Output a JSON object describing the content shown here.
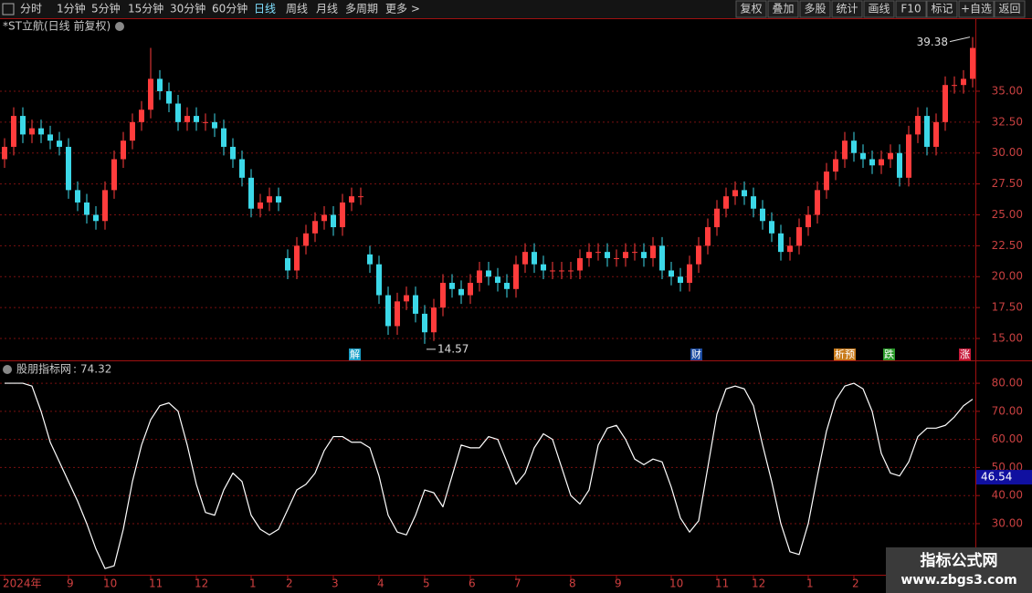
{
  "toolbar": {
    "left": [
      "分时",
      "1分钟",
      "5分钟",
      "15分钟",
      "30分钟",
      "60分钟",
      "日线",
      "周线",
      "月线",
      "多周期",
      "更多 >"
    ],
    "right": [
      "复权",
      "叠加",
      "多股",
      "统计",
      "画线",
      "F10",
      "标记",
      "+自选",
      "返回"
    ]
  },
  "watermark": {
    "title": "指标公式网",
    "url": "www.zbgs3.com"
  },
  "chart_data": [
    {
      "type": "candlestick",
      "title": "*ST立航(日线 前复权)",
      "up_color": "#ff3c3c",
      "down_color": "#3cd8e8",
      "grid": true,
      "ylim": [
        13.23,
        40.9
      ],
      "yticks": [
        {
          "value": 15,
          "label": "15.00"
        },
        {
          "value": 17.5,
          "label": "17.50"
        },
        {
          "value": 20,
          "label": "20.00"
        },
        {
          "value": 22.5,
          "label": "22.50"
        },
        {
          "value": 25,
          "label": "25.00"
        },
        {
          "value": 27.5,
          "label": "27.50"
        },
        {
          "value": 30,
          "label": "30.00"
        },
        {
          "value": 32.5,
          "label": "32.50"
        },
        {
          "value": 35,
          "label": "35.00"
        }
      ],
      "events": [
        "解",
        "财",
        "析预",
        "跌",
        "涨"
      ],
      "categories": [
        "2024年",
        null,
        null,
        null,
        null,
        null,
        null,
        "9",
        null,
        null,
        null,
        "10",
        null,
        null,
        null,
        null,
        "11",
        null,
        null,
        null,
        null,
        "12",
        null,
        null,
        null,
        null,
        null,
        "1",
        null,
        null,
        null,
        "2",
        null,
        null,
        null,
        null,
        "3",
        null,
        null,
        null,
        null,
        "4",
        null,
        null,
        null,
        null,
        "5",
        null,
        null,
        null,
        null,
        "6",
        null,
        null,
        null,
        null,
        "7",
        null,
        null,
        null,
        null,
        null,
        "8",
        null,
        null,
        null,
        null,
        "9",
        null,
        null,
        null,
        null,
        null,
        "10",
        null,
        null,
        null,
        null,
        "11",
        null,
        null,
        null,
        "12",
        null,
        null,
        null,
        null,
        null,
        "1",
        null,
        null,
        null,
        null,
        "2",
        null,
        null,
        null,
        null,
        null,
        null,
        null,
        null,
        null,
        null,
        null,
        null,
        null
      ],
      "open": [
        29.5,
        30.5,
        33,
        31.5,
        32,
        31.5,
        31,
        30.5,
        27,
        26,
        25,
        24.5,
        27,
        29.5,
        31,
        32.5,
        33.5,
        36,
        35,
        34,
        32.5,
        33,
        32.5,
        32.5,
        32,
        30.5,
        29.5,
        28,
        25.5,
        26,
        26.5,
        21.5,
        20.5,
        22.5,
        23.5,
        24.5,
        25,
        24,
        26,
        26.5,
        21.8,
        21,
        18.5,
        16,
        18,
        18.5,
        17,
        15.5,
        17.5,
        19.5,
        19,
        18.5,
        19.5,
        20.5,
        20,
        19.5,
        19,
        21,
        22,
        21,
        20.5,
        20.5,
        20.5,
        20.5,
        21.5,
        22,
        22,
        21.5,
        21.5,
        22,
        22,
        21.5,
        22.5,
        20.5,
        20,
        19.5,
        21,
        22.5,
        24,
        25.5,
        26.5,
        27,
        26.5,
        25.5,
        24.5,
        23.5,
        22,
        22.5,
        24,
        25,
        27,
        28.5,
        29.5,
        31,
        30,
        29.5,
        29,
        29.5,
        30,
        28,
        31.5,
        33,
        30.5,
        32.5,
        35.5,
        35.5,
        36
      ],
      "high": [
        31.2,
        33.7,
        33.7,
        32.7,
        32.7,
        32.2,
        31.7,
        31.2,
        27.7,
        26.7,
        25.7,
        27.7,
        30.2,
        31.7,
        33.2,
        34.2,
        38.5,
        36.7,
        35.7,
        34.7,
        33.7,
        33.7,
        33.2,
        33.2,
        32.7,
        31.2,
        30.2,
        28.7,
        26.7,
        27.2,
        27.2,
        22.2,
        23.2,
        24.2,
        25.2,
        25.7,
        25.7,
        26.7,
        27.2,
        27.2,
        22.5,
        21.7,
        19.2,
        18.7,
        19.2,
        19.2,
        17.7,
        18.2,
        20.2,
        20.2,
        19.7,
        20.2,
        21.2,
        21.2,
        20.7,
        20.2,
        21.7,
        22.7,
        22.7,
        21.7,
        21.2,
        21.2,
        21.2,
        22.2,
        22.7,
        22.7,
        22.7,
        22.2,
        22.7,
        22.7,
        22.7,
        23.2,
        23.2,
        21.2,
        20.7,
        21.7,
        23.2,
        24.7,
        26.2,
        27.2,
        27.7,
        27.7,
        27.2,
        26.2,
        25.2,
        24.2,
        23.2,
        24.7,
        25.7,
        27.7,
        29.2,
        30.2,
        31.7,
        31.7,
        30.7,
        30.2,
        30.2,
        30.7,
        30.7,
        32.2,
        33.7,
        33.7,
        33.2,
        36.2,
        36.2,
        36.7,
        39.38
      ],
      "low": [
        28.8,
        29.8,
        30.8,
        30.8,
        30.8,
        30.3,
        29.8,
        26.3,
        25.3,
        24.3,
        23.8,
        23.8,
        26.3,
        28.8,
        30.3,
        31.8,
        32.8,
        34.3,
        33.3,
        31.8,
        31.8,
        31.8,
        31.8,
        31.3,
        29.8,
        28.8,
        27.3,
        24.8,
        24.8,
        25.3,
        25.3,
        19.8,
        19.8,
        21.8,
        22.8,
        23.8,
        23.3,
        23.3,
        25.3,
        25.8,
        20.3,
        17.8,
        15.3,
        15.3,
        17.3,
        16.3,
        14.57,
        14.8,
        16.8,
        18.3,
        17.8,
        17.8,
        18.8,
        19.3,
        18.8,
        18.3,
        18.3,
        20.3,
        20.3,
        19.8,
        19.8,
        19.8,
        19.8,
        19.8,
        20.8,
        21.3,
        20.8,
        20.8,
        20.8,
        21.3,
        20.8,
        20.8,
        19.8,
        19.3,
        18.8,
        18.8,
        20.3,
        21.8,
        23.3,
        24.8,
        25.8,
        25.8,
        24.8,
        23.8,
        22.8,
        21.3,
        21.3,
        21.8,
        23.3,
        24.3,
        26.3,
        27.8,
        28.8,
        29.3,
        28.8,
        28.3,
        28.3,
        28.8,
        27.3,
        27.3,
        30.8,
        29.8,
        29.8,
        31.8,
        34.8,
        34.8,
        35.3
      ],
      "close": [
        30.5,
        33,
        31.5,
        32,
        31.5,
        31,
        30.5,
        27,
        26,
        25,
        24.5,
        27,
        29.5,
        31,
        32.5,
        33.5,
        36,
        35,
        34,
        32.5,
        33,
        32.5,
        32.5,
        32,
        30.5,
        29.5,
        28,
        25.5,
        26,
        26.5,
        26,
        20.5,
        22.5,
        23.5,
        24.5,
        25,
        24,
        26,
        26.5,
        26.5,
        21,
        18.5,
        16,
        18,
        18.5,
        17,
        15.5,
        17.5,
        19.5,
        19,
        18.5,
        19.5,
        20.5,
        20,
        19.5,
        19,
        21,
        22,
        21,
        20.5,
        20.5,
        20.5,
        20.5,
        21.5,
        22,
        22,
        21.5,
        21.5,
        22,
        22,
        21.5,
        22.5,
        20.5,
        20,
        19.5,
        21,
        22.5,
        24,
        25.5,
        26.5,
        27,
        26.5,
        25.5,
        24.5,
        23.5,
        22,
        22.5,
        24,
        25,
        27,
        28.5,
        29.5,
        31,
        30,
        29.5,
        29,
        29.5,
        30,
        28,
        31.5,
        33,
        30.5,
        32.5,
        35.5,
        35.5,
        36,
        38.5
      ]
    },
    {
      "type": "line",
      "title": "股朋指标网",
      "title_separator": ":",
      "color": "#ffffff",
      "grid": true,
      "cursor_value": 46.54,
      "ylim": [
        11.8,
        87.5
      ],
      "yticks": [
        {
          "value": 30,
          "label": "30.00"
        },
        {
          "value": 40,
          "label": "40.00"
        },
        {
          "value": 50,
          "label": "50.00"
        },
        {
          "value": 60,
          "label": "60.00"
        },
        {
          "value": 70,
          "label": "70.00"
        },
        {
          "value": 80,
          "label": "80.00"
        }
      ],
      "values": [
        80,
        80,
        80,
        79,
        70,
        59,
        52,
        45,
        38,
        30,
        21,
        14,
        15,
        28,
        45,
        58,
        67,
        72,
        73,
        70,
        58,
        44,
        34,
        33,
        42,
        48,
        45,
        33,
        28,
        26,
        28,
        35,
        42,
        44,
        48,
        56,
        61,
        61,
        59,
        59,
        57,
        47,
        33,
        27,
        26,
        33,
        42,
        41,
        36,
        47,
        58,
        57,
        57,
        61,
        60,
        52,
        44,
        48,
        57,
        62,
        60,
        50,
        40,
        37,
        42,
        58,
        64,
        65,
        60,
        53,
        51,
        53,
        52,
        43,
        32,
        27,
        31,
        50,
        69,
        78,
        79,
        78,
        72,
        58,
        45,
        30,
        20,
        19,
        30,
        47,
        63,
        74,
        79,
        80,
        78,
        70,
        55,
        48,
        47,
        52,
        61,
        64,
        64,
        65,
        68,
        72,
        74.32
      ]
    }
  ]
}
